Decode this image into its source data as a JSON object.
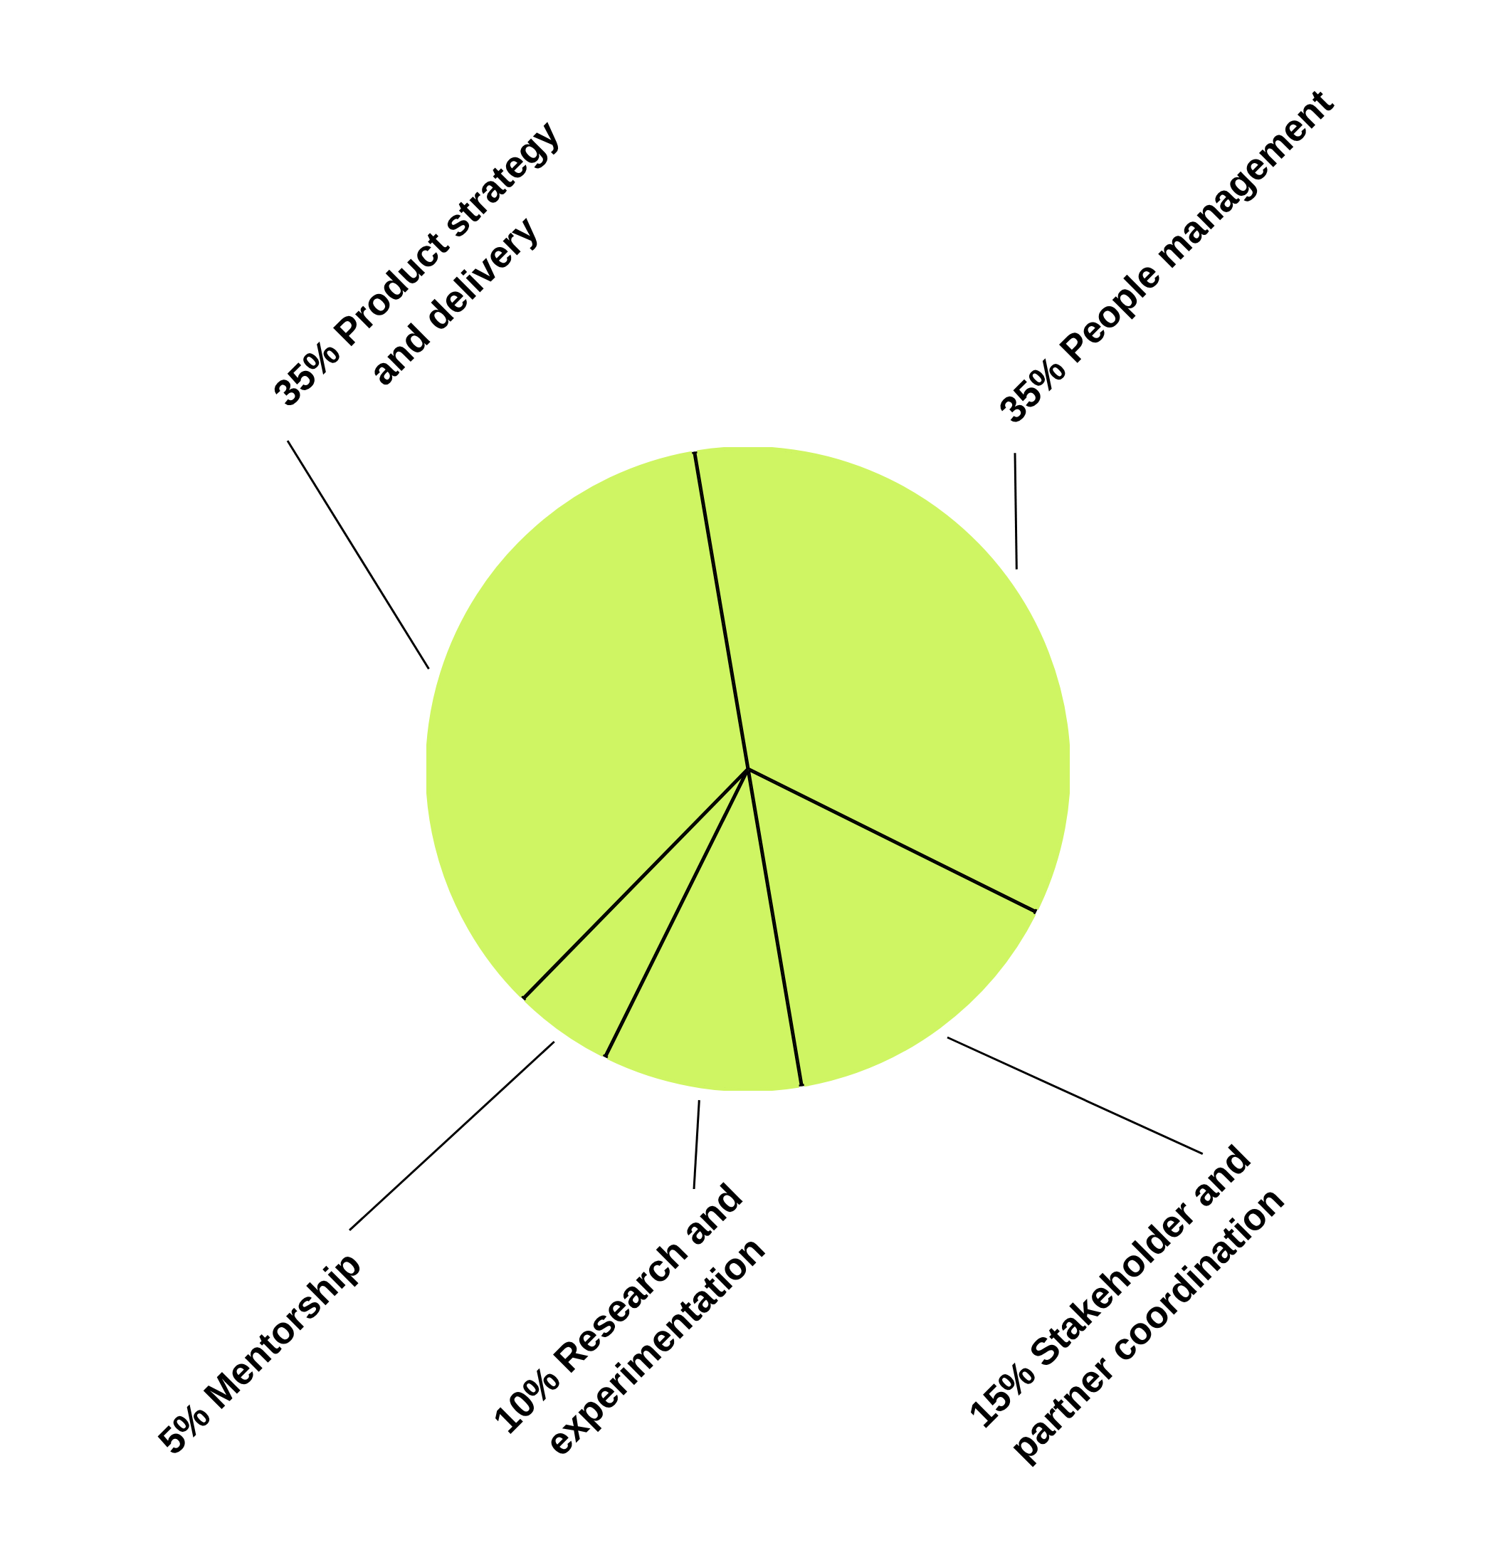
{
  "chart_data": {
    "type": "pie",
    "categories": [
      "People management",
      "Stakeholder and partner coordination",
      "Research and experimentation",
      "Mentorship",
      "Product strategy and delivery"
    ],
    "values": [
      35,
      15,
      10,
      5,
      35
    ],
    "value_labels": [
      "35%",
      "15%",
      "10%",
      "5%",
      "35%"
    ],
    "colors": [
      "#cff563",
      "#cff563",
      "#cff563",
      "#cff563",
      "#cff563"
    ]
  }
}
